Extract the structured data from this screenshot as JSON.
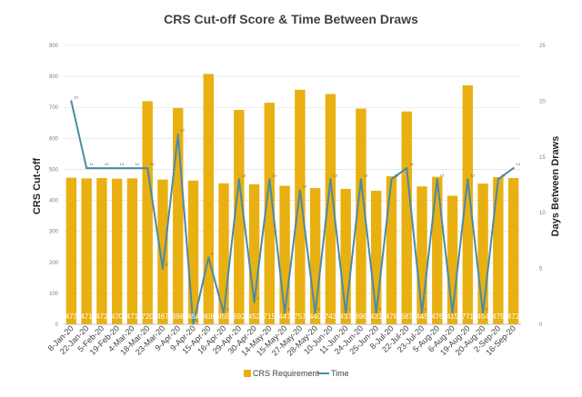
{
  "chart_data": {
    "type": "bar",
    "title": "CRS Cut-off Score & Time Between Draws",
    "ylabel": "CRS Cut-off",
    "y2label": "Days Between Draws",
    "ylim": [
      0,
      900
    ],
    "y2lim": [
      0,
      25
    ],
    "yticks": [
      "0",
      "100",
      "200",
      "300",
      "400",
      "500",
      "600",
      "700",
      "800",
      "900"
    ],
    "y2ticks": [
      "0",
      "5",
      "10",
      "15",
      "20",
      "25"
    ],
    "grid": true,
    "legend_position": "bottom",
    "categories": [
      "8-Jan-20",
      "22-Jan-20",
      "5-Feb-20",
      "19-Feb-20",
      "4-Mar-20",
      "18-Mar-20",
      "23-Mar-20",
      "9-Apr-20",
      "9-Apr-20",
      "15-Apr-20",
      "16-Apr-20",
      "29-Apr-20",
      "30-Apr-20",
      "14-May-20",
      "15-May-20",
      "27-May-20",
      "28-May-20",
      "10-Jun-20",
      "11-Jun-20",
      "24-Jun-20",
      "25-Jun-20",
      "8-Jul-20",
      "22-Jul-20",
      "23-Jul-20",
      "5-Aug-20",
      "6-Aug-20",
      "19-Aug-20",
      "20-Aug-20",
      "2-Sep-20",
      "16-Sep-20"
    ],
    "series": [
      {
        "name": "CRS Requirement",
        "type": "bar",
        "axis": "left",
        "color": "#e8b011",
        "values": [
          473,
          471,
          472,
          470,
          471,
          720,
          467,
          698,
          464,
          808,
          455,
          692,
          452,
          715,
          447,
          757,
          440,
          743,
          437,
          696,
          431,
          478,
          687,
          445,
          476,
          415,
          771,
          454,
          475,
          472
        ]
      },
      {
        "name": "Time",
        "type": "line",
        "axis": "right",
        "color": "#4a8aa8",
        "values": [
          20,
          14,
          14,
          14,
          14,
          14,
          5,
          17,
          0,
          6,
          1,
          13,
          2,
          13,
          1,
          12,
          1,
          13,
          1,
          13,
          1,
          13,
          14,
          1,
          13,
          1,
          13,
          1,
          13,
          14
        ]
      }
    ]
  },
  "legend": {
    "bar_label": "CRS Requirement",
    "line_label": "Time"
  }
}
